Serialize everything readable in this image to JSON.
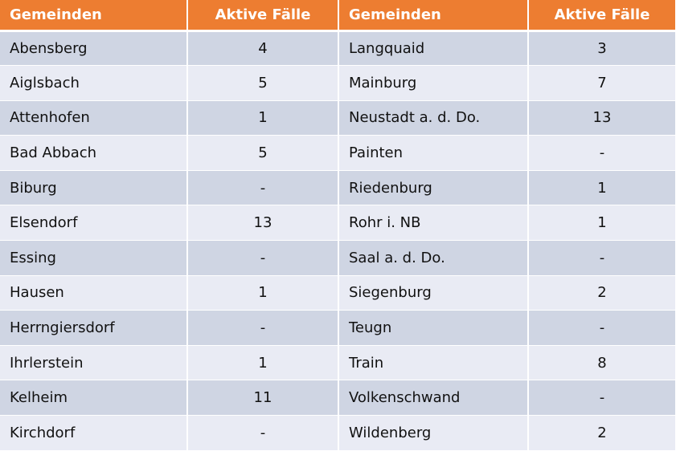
{
  "headers": [
    "Gemeinden",
    "Aktive Fälle",
    "Gemeinden",
    "Aktive Fälle"
  ],
  "rows": [
    [
      "Abensberg",
      "4",
      "Langquaid",
      "3"
    ],
    [
      "Aiglsbach",
      "5",
      "Mainburg",
      "7"
    ],
    [
      "Attenhofen",
      "1",
      "Neustadt a. d. Do.",
      "13"
    ],
    [
      "Bad Abbach",
      "5",
      "Painten",
      "-"
    ],
    [
      "Biburg",
      "-",
      "Riedenburg",
      "1"
    ],
    [
      "Elsendorf",
      "13",
      "Rohr i. NB",
      "1"
    ],
    [
      "Essing",
      "-",
      "Saal a. d. Do.",
      "-"
    ],
    [
      "Hausen",
      "1",
      "Siegenburg",
      "2"
    ],
    [
      "Herrngiersdorf",
      "-",
      "Teugn",
      "-"
    ],
    [
      "Ihrlerstein",
      "1",
      "Train",
      "8"
    ],
    [
      "Kelheim",
      "11",
      "Volkenschwand",
      "-"
    ],
    [
      "Kirchdorf",
      "-",
      "Wildenberg",
      "2"
    ]
  ],
  "colors": {
    "header_bg": "#ED7D31",
    "row_dark": "#CFD5E3",
    "row_light": "#E9EBF4"
  }
}
